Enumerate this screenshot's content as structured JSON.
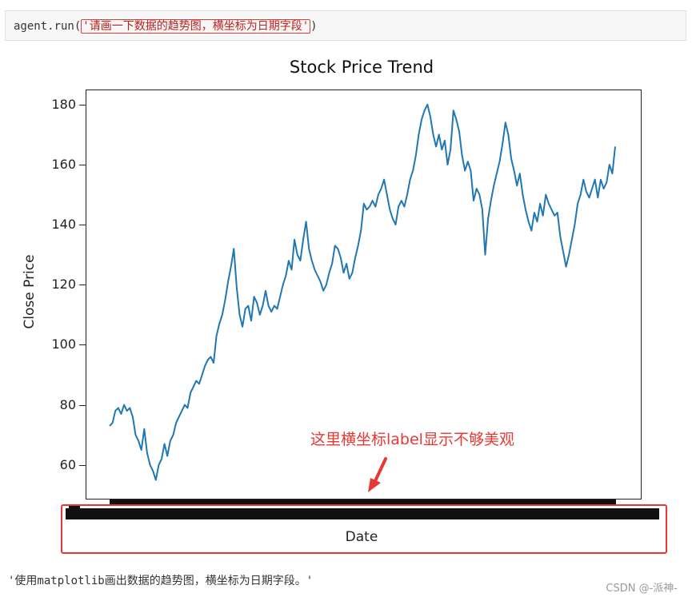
{
  "code_cell": {
    "prefix": "agent.run(",
    "argument": "'请画一下数据的趋势图，横坐标为日期字段'",
    "suffix": ")"
  },
  "annotation": {
    "text": "这里横坐标label显示不够美观",
    "color": "#e53935"
  },
  "output_text": "'使用matplotlib画出数据的趋势图，横坐标为日期字段。'",
  "watermark": "CSDN @-派神-",
  "colors": {
    "line": "#1f77b4",
    "highlight": "#e53935"
  },
  "chart_data": {
    "type": "line",
    "title": "Stock Price Trend",
    "xlabel": "Date",
    "ylabel": "Close Price",
    "ylim": [
      48.5,
      185
    ],
    "yticks": [
      60,
      80,
      100,
      120,
      140,
      160,
      180
    ],
    "x_tick_labels_note": "overlapping, unreadable",
    "grid": false,
    "y": [
      73,
      74,
      78,
      79,
      77,
      80,
      78,
      79,
      76,
      70,
      68,
      65,
      72,
      64,
      60,
      58,
      55,
      60,
      62,
      67,
      63,
      68,
      70,
      74,
      76,
      78,
      80,
      79,
      84,
      86,
      88,
      87,
      90,
      93,
      95,
      96,
      94,
      103,
      107,
      110,
      115,
      121,
      126,
      132,
      119,
      110,
      106,
      112,
      113,
      108,
      116,
      114,
      110,
      113,
      118,
      113,
      111,
      113,
      112,
      116,
      120,
      123,
      128,
      125,
      135,
      130,
      128,
      135,
      141,
      132,
      128,
      125,
      123,
      121,
      118,
      120,
      124,
      127,
      133,
      132,
      129,
      124,
      127,
      122,
      124,
      129,
      133,
      138,
      147,
      145,
      146,
      148,
      146,
      150,
      152,
      155,
      150,
      145,
      142,
      140,
      146,
      148,
      146,
      150,
      155,
      158,
      163,
      170,
      175,
      178,
      180,
      176,
      170,
      166,
      170,
      165,
      168,
      160,
      165,
      178,
      175,
      171,
      163,
      158,
      161,
      158,
      148,
      152,
      150,
      145,
      130,
      142,
      148,
      153,
      157,
      161,
      167,
      174,
      170,
      162,
      158,
      153,
      157,
      150,
      145,
      141,
      138,
      144,
      141,
      147,
      143,
      150,
      147,
      145,
      143,
      144,
      136,
      131,
      126,
      130,
      135,
      140,
      147,
      150,
      155,
      151,
      149,
      152,
      155,
      149,
      155,
      152,
      154,
      160,
      157,
      166
    ]
  }
}
